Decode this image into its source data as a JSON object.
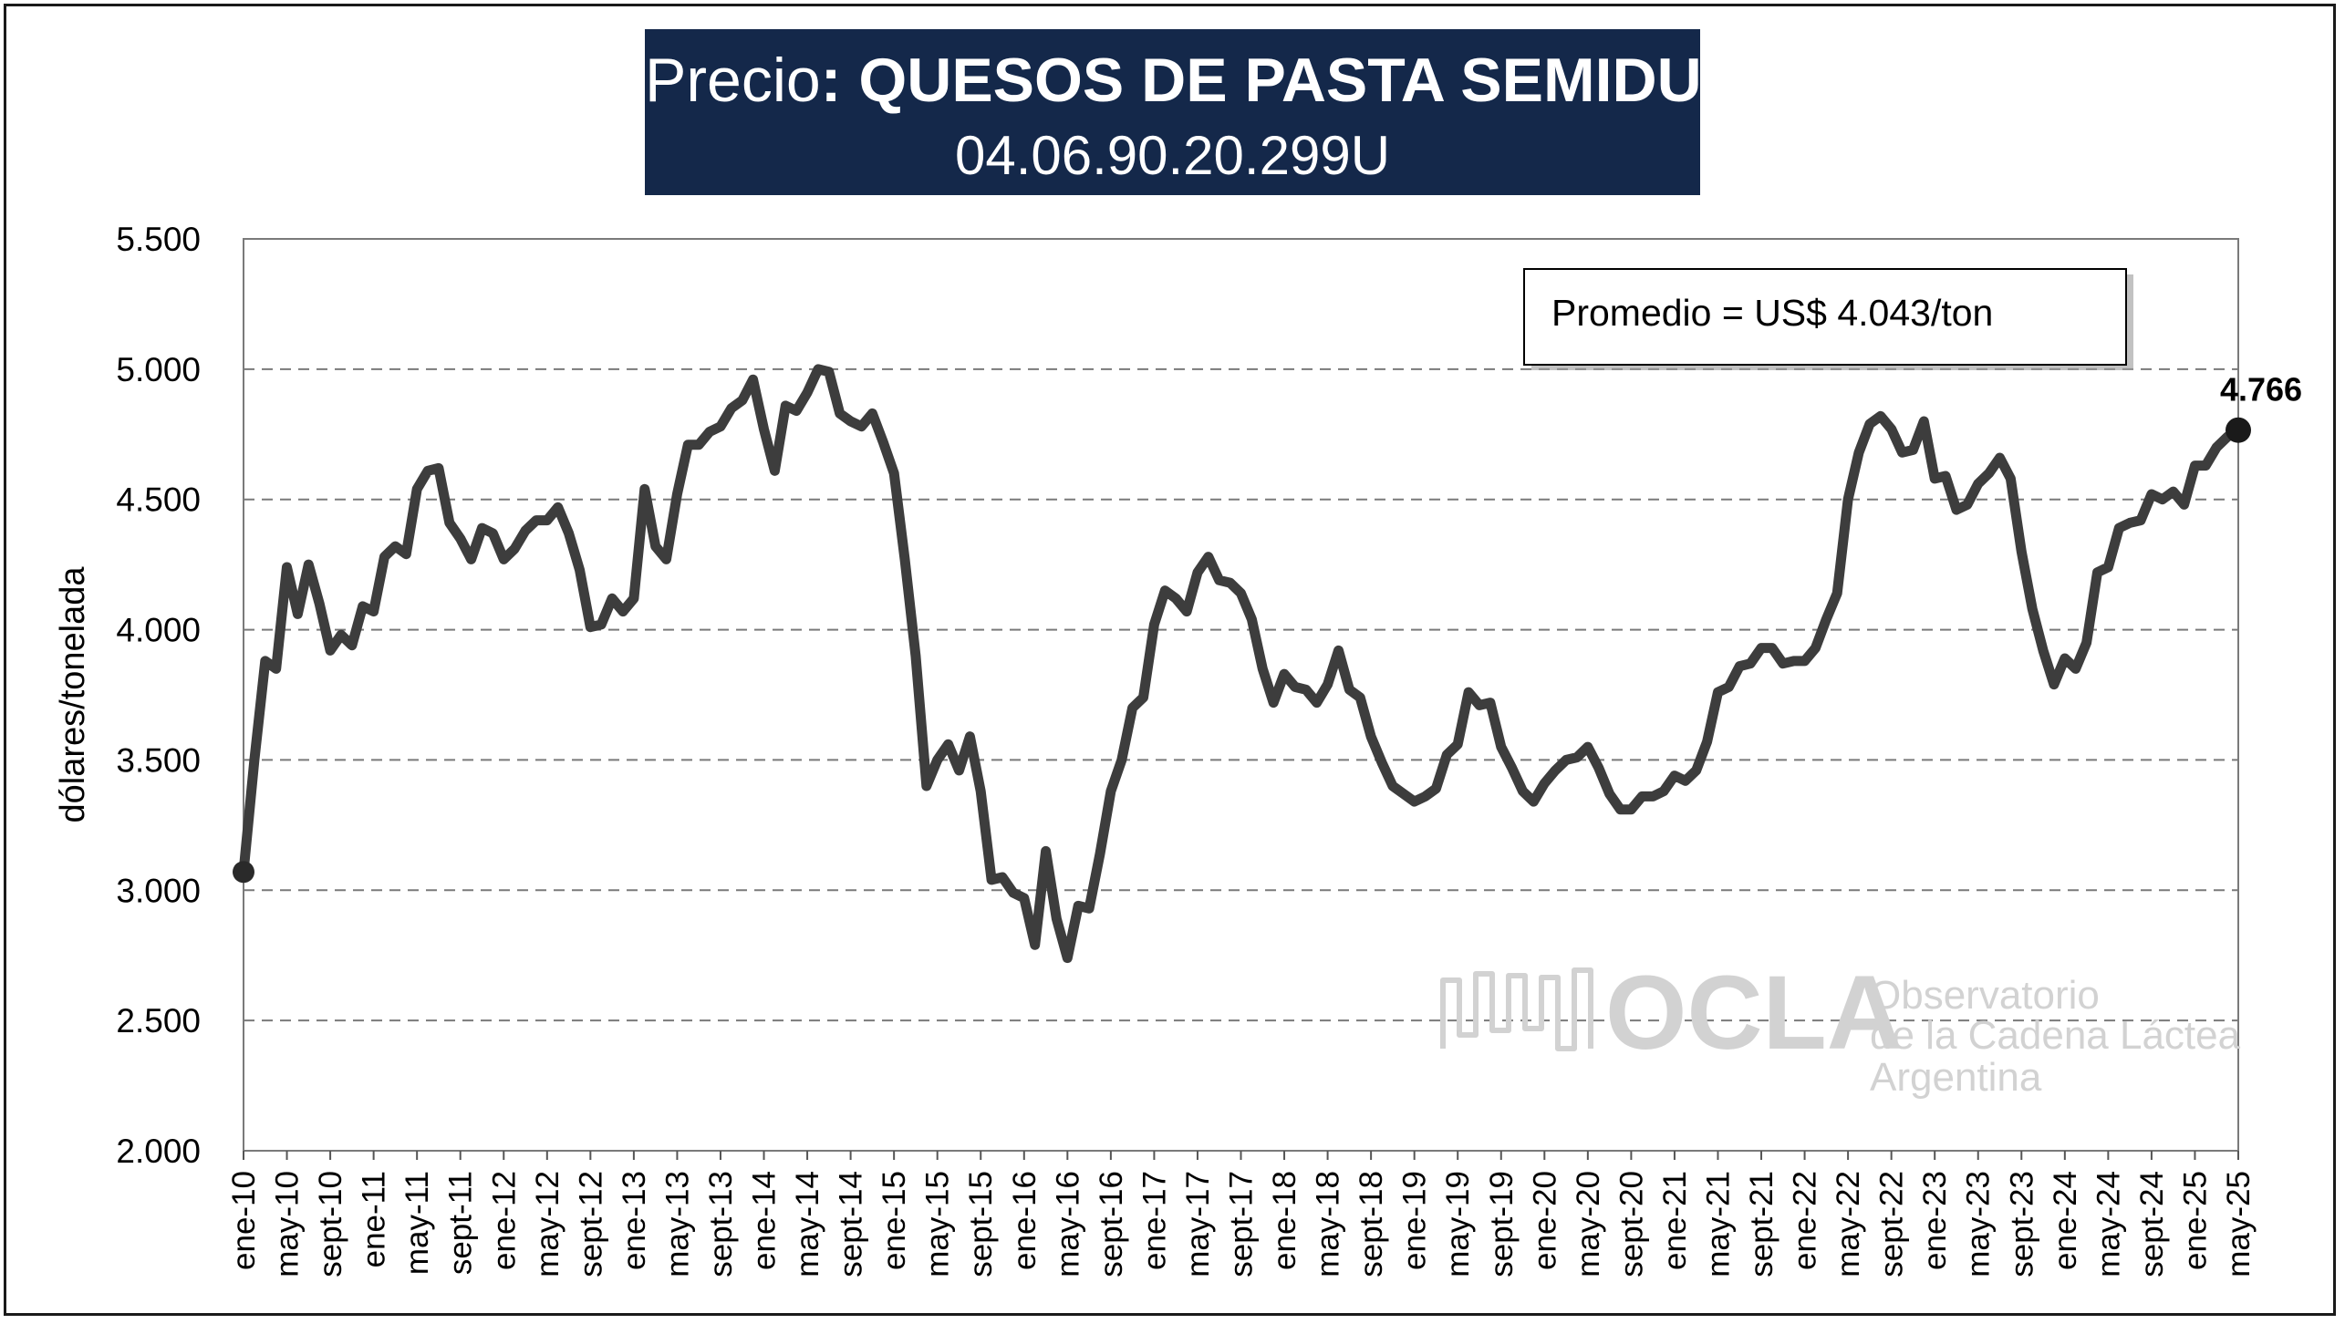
{
  "title": {
    "prefix": "Precio",
    "colon": ":",
    "name": "QUESOS DE PASTA SEMIDURA",
    "code": "04.06.90.20.299U"
  },
  "annotation": {
    "average_label": "Promedio = US$ 4.043/ton",
    "last_value_label": "4.766"
  },
  "logo": {
    "mark": "OCLA",
    "line1": "Observatorio",
    "line2": "de la Cadena Láctea",
    "line3": "Argentina"
  },
  "colors": {
    "line": "#3d3d3d",
    "title_bg": "#14284a",
    "gridline": "#7a7a7a",
    "logo": "#d2d2d2"
  },
  "chart_data": {
    "type": "line",
    "title": "Precio: QUESOS DE PASTA SEMIDURA",
    "subtitle": "04.06.90.20.299U",
    "xlabel": "",
    "ylabel": "dólares/tonelada",
    "ylim": [
      2000,
      5500
    ],
    "yticks": [
      2000,
      2500,
      3000,
      3500,
      4000,
      4500,
      5000,
      5500
    ],
    "ytick_labels": [
      "2.000",
      "2.500",
      "3.000",
      "3.500",
      "4.000",
      "4.500",
      "5.000",
      "5.500"
    ],
    "grid": "horizontal dashed",
    "xticks": [
      "ene-10",
      "may-10",
      "sept-10",
      "ene-11",
      "may-11",
      "sept-11",
      "ene-12",
      "may-12",
      "sept-12",
      "ene-13",
      "may-13",
      "sept-13",
      "ene-14",
      "may-14",
      "sept-14",
      "ene-15",
      "may-15",
      "sept-15",
      "ene-16",
      "may-16",
      "sept-16",
      "ene-17",
      "may-17",
      "sept-17",
      "ene-18",
      "may-18",
      "sept-18",
      "ene-19",
      "may-19",
      "sept-19",
      "ene-20",
      "may-20",
      "sept-20",
      "ene-21",
      "may-21",
      "sept-21",
      "ene-22",
      "may-22",
      "sept-22",
      "ene-23",
      "may-23",
      "sept-23",
      "ene-24",
      "may-24",
      "sept-24",
      "ene-25",
      "may-25"
    ],
    "x_start": "ene-10",
    "x_end": "jul-25",
    "series": [
      {
        "values": [
          3070,
          3500,
          3880,
          3850,
          4240,
          4060,
          4250,
          4100,
          3920,
          3980,
          3940,
          4090,
          4070,
          4280,
          4320,
          4290,
          4540,
          4610,
          4620,
          4410,
          4350,
          4270,
          4390,
          4370,
          4270,
          4310,
          4380,
          4420,
          4420,
          4470,
          4370,
          4230,
          4010,
          4020,
          4120,
          4070,
          4120,
          4540,
          4320,
          4270,
          4520,
          4710,
          4710,
          4760,
          4780,
          4850,
          4880,
          4960,
          4770,
          4610,
          4860,
          4840,
          4910,
          5000,
          4990,
          4830,
          4800,
          4780,
          4830,
          4720,
          4600,
          4270,
          3900,
          3400,
          3500,
          3560,
          3460,
          3590,
          3380,
          3040,
          3050,
          2990,
          2970,
          2790,
          3150,
          2890,
          2740,
          2940,
          2930,
          3140,
          3380,
          3500,
          3700,
          3740,
          4020,
          4150,
          4120,
          4070,
          4220,
          4280,
          4190,
          4180,
          4140,
          4040,
          3850,
          3720,
          3830,
          3780,
          3770,
          3720,
          3790,
          3920,
          3770,
          3740,
          3590,
          3490,
          3400,
          3370,
          3340,
          3360,
          3390,
          3520,
          3560,
          3760,
          3710,
          3720,
          3550,
          3470,
          3380,
          3340,
          3410,
          3460,
          3500,
          3510,
          3550,
          3470,
          3370,
          3310,
          3310,
          3360,
          3360,
          3380,
          3440,
          3420,
          3460,
          3570,
          3760,
          3780,
          3860,
          3870,
          3930,
          3930,
          3870,
          3880,
          3880,
          3930,
          4040,
          4140,
          4500,
          4680,
          4790,
          4820,
          4770,
          4680,
          4690,
          4800,
          4580,
          4590,
          4460,
          4480,
          4560,
          4600,
          4660,
          4580,
          4300,
          4080,
          3920,
          3790,
          3890,
          3850,
          3950,
          4220,
          4240,
          4390,
          4410,
          4420,
          4520,
          4500,
          4530,
          4480,
          4630,
          4630,
          4700,
          4740,
          4766
        ]
      }
    ]
  }
}
